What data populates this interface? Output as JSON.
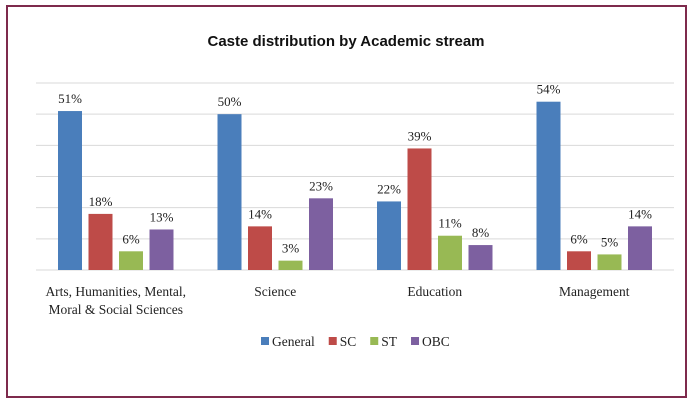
{
  "chart_data": {
    "type": "bar",
    "title": "Caste distribution by Academic stream",
    "categories": [
      "Arts, Humanities, Mental, Moral & Social Sciences",
      "Science",
      "Education",
      "Management"
    ],
    "category_lines": [
      [
        "Arts, Humanities, Mental,",
        "Moral & Social Sciences"
      ],
      [
        "Science"
      ],
      [
        "Education"
      ],
      [
        "Management"
      ]
    ],
    "series": [
      {
        "name": "General",
        "color": "#4a7ebb",
        "values": [
          51,
          50,
          22,
          54
        ]
      },
      {
        "name": "SC",
        "color": "#be4b48",
        "values": [
          18,
          14,
          39,
          6
        ]
      },
      {
        "name": "ST",
        "color": "#98b954",
        "values": [
          6,
          3,
          11,
          5
        ]
      },
      {
        "name": "OBC",
        "color": "#7d60a0",
        "values": [
          13,
          23,
          8,
          14
        ]
      }
    ],
    "value_suffix": "%",
    "ylim": [
      0,
      60
    ],
    "ytick_step": 10,
    "y_tick_labels_shown": false,
    "grid": true,
    "legend": "bottom",
    "border_color": "#7e2a4c"
  }
}
